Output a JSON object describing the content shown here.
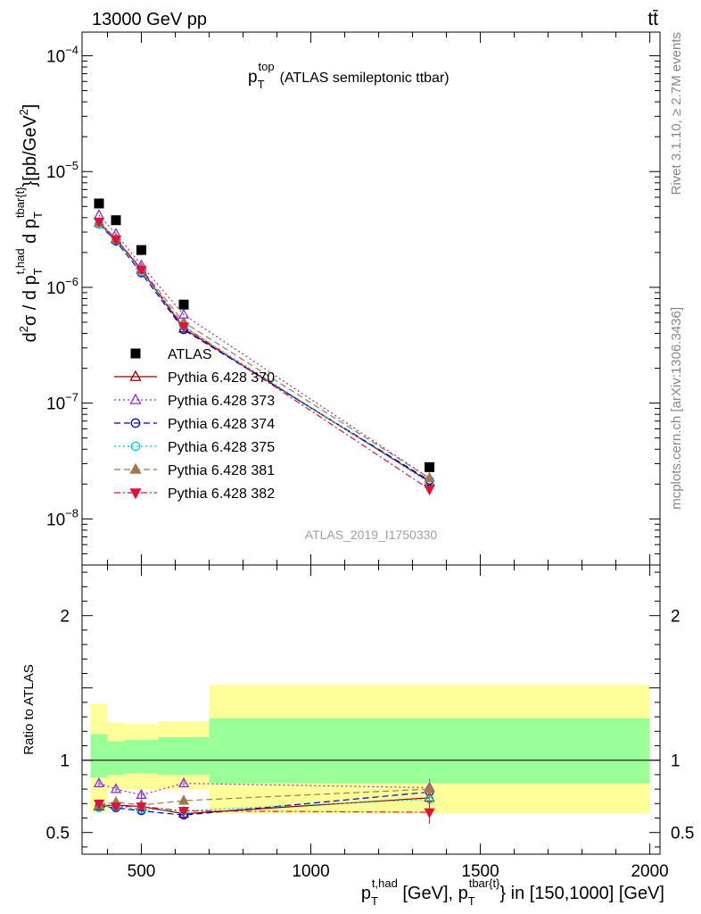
{
  "header": {
    "left": "13000 GeV pp",
    "right": "tt̄"
  },
  "side_text": {
    "rivet": "Rivet 3.1.10, ≥ 2.7M events",
    "mcplots": "mcplots.cern.ch [arXiv:1306.3436]"
  },
  "analysis_id": "ATLAS_2019_I1750330",
  "chart_data": [
    {
      "type": "scatter",
      "panel": "main",
      "title": "p_T^top (ATLAS semileptonic ttbar)",
      "title_parts": {
        "p": "p",
        "sub": "T",
        "sup": "top",
        "rest": "(ATLAS semileptonic ttbar)"
      },
      "ylabel": "d²σ / d p_T^{t,had} d p_T^{tbar{t}} [pb/GeV²]",
      "ylabel_parts": {
        "a": "d",
        "a_sup": "2",
        "b": "σ  /  d p",
        "b_sub": "T",
        "b_sup": "t,had",
        "c": " d p",
        "c_sub": "T",
        "c_sup": "tbar{t}",
        "d": "}[pb/GeV",
        "d_sup": "2",
        "e": "]"
      },
      "ylog": true,
      "ylim": [
        4e-09,
        0.00016
      ],
      "xlim": [
        325,
        2030
      ],
      "yticklabels": [
        {
          "v": 1e-08,
          "base": "10",
          "exp": "−8"
        },
        {
          "v": 1e-07,
          "base": "10",
          "exp": "−7"
        },
        {
          "v": 1e-06,
          "base": "10",
          "exp": "−6"
        },
        {
          "v": 1e-05,
          "base": "10",
          "exp": "−5"
        },
        {
          "v": 0.0001,
          "base": "10",
          "exp": "−4"
        }
      ],
      "legend_position": "lower-left",
      "reference": {
        "name": "ATLAS",
        "color": "#000000",
        "marker": "square",
        "x": [
          375,
          425,
          500,
          625,
          1350
        ],
        "y": [
          5.3e-06,
          3.8e-06,
          2.1e-06,
          7.1e-07,
          2.8e-08
        ]
      },
      "series": [
        {
          "name": "Pythia 6.428 370",
          "color": "#8B0000",
          "marker": "triangle-open",
          "dash": "solid",
          "x": [
            375,
            425,
            500,
            625,
            1350
          ],
          "y": [
            3.6e-06,
            2.6e-06,
            1.42e-06,
            4.4e-07,
            2.1e-08
          ]
        },
        {
          "name": "Pythia 6.428 373",
          "color": "#8A2BE2",
          "marker": "triangle-open",
          "dash": "dot",
          "x": [
            375,
            425,
            500,
            625,
            1350
          ],
          "y": [
            4.2e-06,
            2.9e-06,
            1.55e-06,
            5.8e-07,
            2.25e-08
          ]
        },
        {
          "name": "Pythia 6.428 374",
          "color": "#0000CD",
          "marker": "circle-open",
          "dash": "dash",
          "x": [
            375,
            425,
            500,
            625,
            1350
          ],
          "y": [
            3.5e-06,
            2.5e-06,
            1.33e-06,
            4.3e-07,
            2.15e-08
          ]
        },
        {
          "name": "Pythia 6.428 375",
          "color": "#00CED1",
          "marker": "circle-open",
          "dash": "dot",
          "x": [
            375,
            425,
            500,
            625,
            1350
          ],
          "y": [
            3.5e-06,
            2.55e-06,
            1.36e-06,
            4.6e-07,
            2.05e-08
          ]
        },
        {
          "name": "Pythia 6.428 381",
          "color": "#A0784A",
          "marker": "triangle-filled",
          "dash": "dash",
          "x": [
            375,
            425,
            500,
            625,
            1350
          ],
          "y": [
            3.6e-06,
            2.65e-06,
            1.45e-06,
            5e-07,
            2.25e-08
          ]
        },
        {
          "name": "Pythia 6.428 382",
          "color": "#DC143C",
          "marker": "triangle-down-filled",
          "dash": "dashdot",
          "x": [
            375,
            425,
            500,
            625,
            1350
          ],
          "y": [
            3.7e-06,
            2.6e-06,
            1.42e-06,
            4.6e-07,
            1.8e-08
          ]
        }
      ]
    },
    {
      "type": "scatter",
      "panel": "ratio",
      "ylabel": "Ratio to ATLAS",
      "ylim": [
        0.35,
        2.35
      ],
      "xlim": [
        325,
        2030
      ],
      "yticks": [
        0.5,
        1,
        2
      ],
      "yticklabels": [
        "0.5",
        "1",
        "2"
      ],
      "xticks": [
        500,
        1000,
        1500,
        2000
      ],
      "xticklabels": [
        "500",
        "1000",
        "1500",
        "2000"
      ],
      "xlabel": "p_T^{t,had} [GeV], p_T^{tbar{t}} in [150,1000] [GeV]",
      "xlabel_parts": {
        "a": "p",
        "a_sub": "T",
        "a_sup": "t,had",
        "b": " [GeV], p",
        "b_sub": "T",
        "b_sup": "tbar{t}",
        "c": "} in [150,1000] [GeV]"
      },
      "bands": [
        {
          "x0": 350,
          "x1": 400,
          "yellow": [
            0.64,
            1.39
          ],
          "green": [
            0.88,
            1.18
          ]
        },
        {
          "x0": 400,
          "x1": 450,
          "yellow": [
            0.8,
            1.26
          ],
          "green": [
            0.9,
            1.13
          ]
        },
        {
          "x0": 450,
          "x1": 550,
          "yellow": [
            0.8,
            1.25
          ],
          "green": [
            0.91,
            1.14
          ]
        },
        {
          "x0": 550,
          "x1": 700,
          "yellow": [
            0.8,
            1.27
          ],
          "green": [
            0.9,
            1.16
          ]
        },
        {
          "x0": 700,
          "x1": 2000,
          "yellow": [
            0.63,
            1.52
          ],
          "green": [
            0.84,
            1.29
          ]
        }
      ],
      "series": [
        {
          "name": "Pythia 6.428 370",
          "x": [
            375,
            425,
            500,
            625,
            1350
          ],
          "y": [
            0.68,
            0.69,
            0.68,
            0.63,
            0.74
          ],
          "err": [
            0.03,
            0.03,
            0.03,
            0.03,
            0.08
          ]
        },
        {
          "name": "Pythia 6.428 373",
          "x": [
            375,
            425,
            500,
            625,
            1350
          ],
          "y": [
            0.84,
            0.8,
            0.76,
            0.84,
            0.81
          ],
          "err": [
            0.02,
            0.02,
            0.02,
            0.02,
            0.06
          ]
        },
        {
          "name": "Pythia 6.428 374",
          "x": [
            375,
            425,
            500,
            625,
            1350
          ],
          "y": [
            0.68,
            0.67,
            0.65,
            0.62,
            0.78
          ],
          "err": [
            0.02,
            0.02,
            0.02,
            0.03,
            0.06
          ]
        },
        {
          "name": "Pythia 6.428 375",
          "x": [
            375,
            425,
            500,
            625,
            1350
          ],
          "y": [
            0.67,
            0.68,
            0.66,
            0.65,
            0.73
          ],
          "err": [
            0.02,
            0.02,
            0.02,
            0.03,
            0.06
          ]
        },
        {
          "name": "Pythia 6.428 381",
          "x": [
            375,
            425,
            500,
            625,
            1350
          ],
          "y": [
            0.69,
            0.71,
            0.69,
            0.72,
            0.8
          ],
          "err": [
            0.02,
            0.02,
            0.02,
            0.03,
            0.06
          ]
        },
        {
          "name": "Pythia 6.428 382",
          "x": [
            375,
            425,
            500,
            625,
            1350
          ],
          "y": [
            0.7,
            0.68,
            0.68,
            0.65,
            0.64
          ],
          "err": [
            0.02,
            0.02,
            0.02,
            0.03,
            0.08
          ]
        }
      ]
    }
  ]
}
